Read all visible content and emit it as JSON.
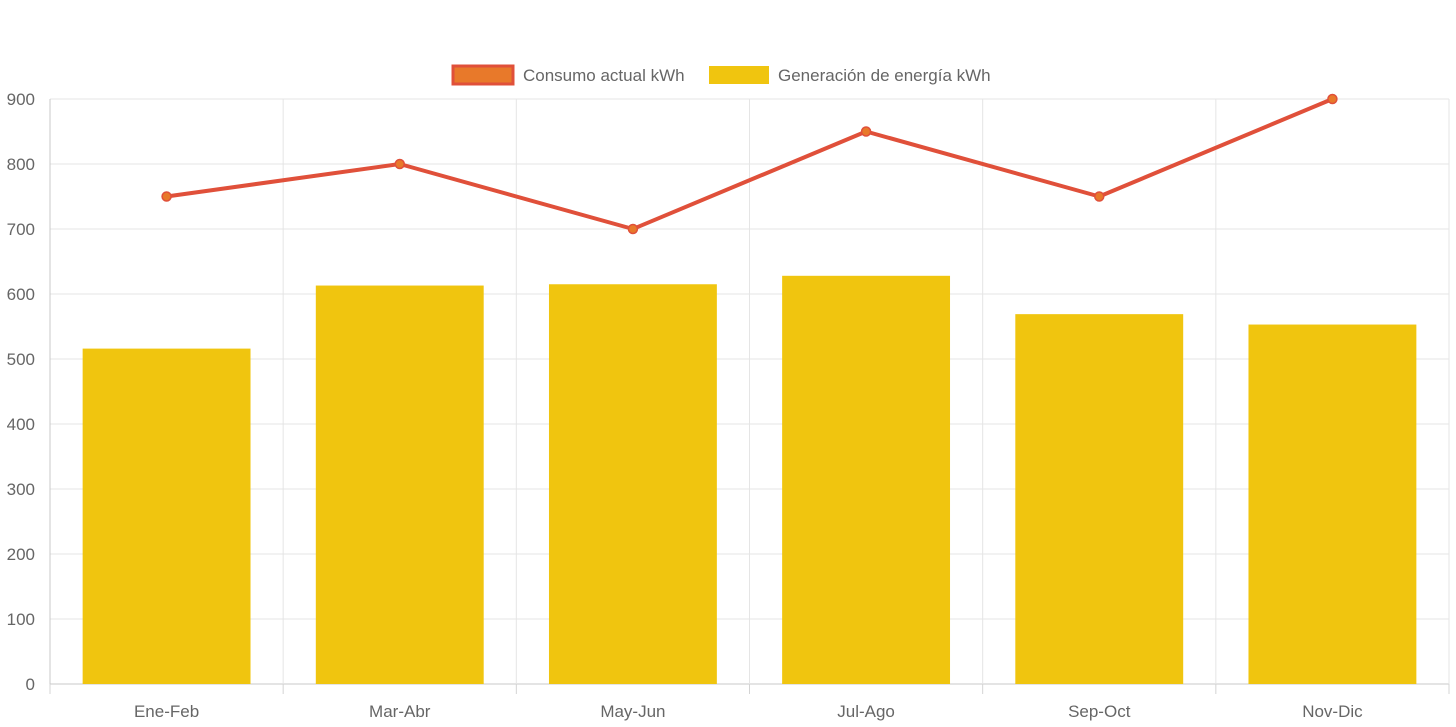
{
  "chart_data": {
    "type": "bar",
    "categories": [
      "Ene-Feb",
      "Mar-Abr",
      "May-Jun",
      "Jul-Ago",
      "Sep-Oct",
      "Nov-Dic"
    ],
    "series": [
      {
        "name": "Consumo actual kWh",
        "type": "line",
        "values": [
          750,
          800,
          700,
          850,
          750,
          900
        ],
        "color": "#e0503a",
        "point_color": "#e8792a"
      },
      {
        "name": "Generación de energía kWh",
        "type": "bar",
        "values": [
          516,
          613,
          615,
          628,
          569,
          553
        ],
        "color": "#f0c50f"
      }
    ],
    "ylim": [
      0,
      900
    ],
    "yticks": [
      "0",
      "100",
      "200",
      "300",
      "400",
      "500",
      "600",
      "700",
      "800",
      "900"
    ],
    "grid": true,
    "legend": "top-center",
    "title": "",
    "xlabel": "",
    "ylabel": ""
  }
}
